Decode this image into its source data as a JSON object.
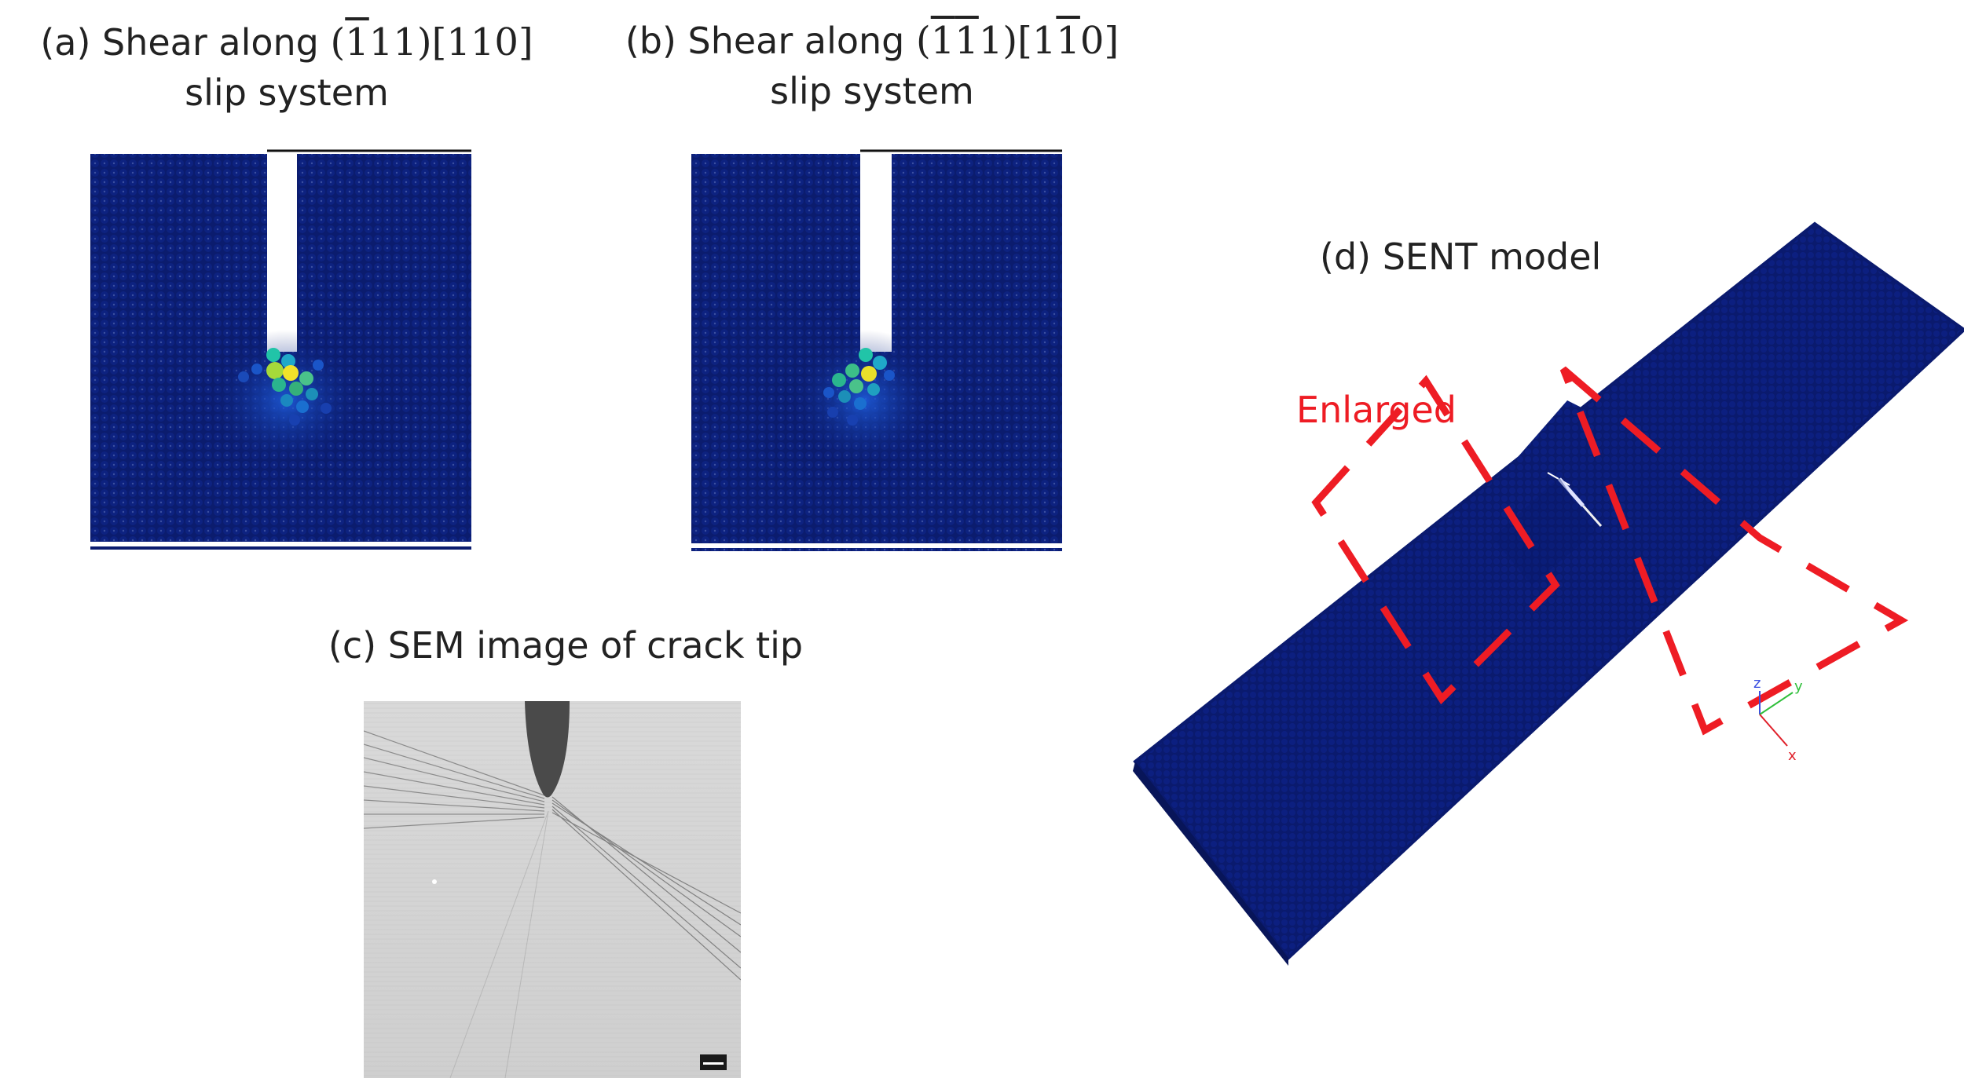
{
  "panel_a": {
    "caption_prefix": "(a) Shear along ",
    "plane_open": "(",
    "plane_bar_1": "1",
    "plane_rest": "11)",
    "direction": "[110]",
    "caption_line2": "slip system"
  },
  "panel_b": {
    "caption_prefix": "(b) Shear along ",
    "plane_open": "(",
    "plane_bar_1": "1",
    "plane_bar_2": "1",
    "plane_rest": "1)",
    "dir_open": "[1",
    "dir_bar": "1",
    "dir_rest": "0]",
    "caption_line2": "slip system"
  },
  "panel_c": {
    "caption": "(c) SEM image of crack tip"
  },
  "panel_d": {
    "caption": "(d) SENT model",
    "enlarged_label": "Enlarged",
    "axes": {
      "x": "x",
      "y": "y",
      "z": "z"
    }
  },
  "colors": {
    "atom_blue": "#0b1c6e",
    "highlight_red": "#ee1c24",
    "axis_x": "#e0202a",
    "axis_y": "#2fbf3a",
    "axis_z": "#3a4fe0"
  }
}
